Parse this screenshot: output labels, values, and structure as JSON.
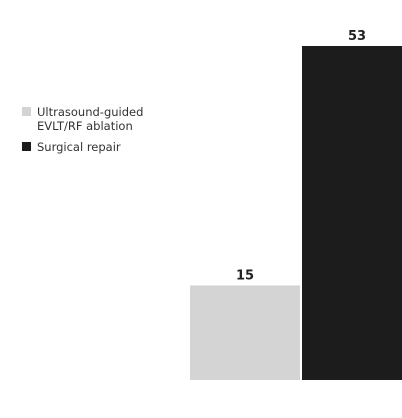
{
  "chart_data": {
    "type": "bar",
    "categories": [
      "Ultrasound-guided EVLT/RF ablation",
      "Surgical repair"
    ],
    "values": [
      15,
      53
    ],
    "data_labels": [
      "15",
      "53"
    ],
    "colors": [
      "#d4d4d4",
      "#1c1c1c"
    ],
    "ylim": [
      0,
      53
    ],
    "grid": false,
    "legend_position": "left",
    "legend": [
      {
        "label": "Ultrasound-guided EVLT/RF ablation",
        "color": "#d4d4d4"
      },
      {
        "label": "Surgical repair",
        "color": "#1c1c1c"
      }
    ]
  }
}
